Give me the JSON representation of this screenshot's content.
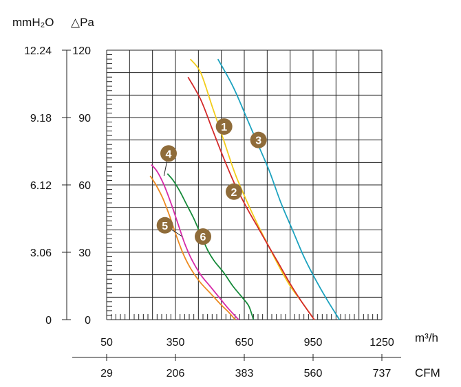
{
  "chart_data": {
    "type": "line",
    "title": "",
    "xlabel": "m³/h",
    "ylabel": "△Pa",
    "x_units": [
      "m³/h",
      "CFM"
    ],
    "y_units": [
      "mmH₂O",
      "△Pa"
    ],
    "xlim": [
      50,
      1250
    ],
    "ylim": [
      0,
      120
    ],
    "x_ticks": [
      50,
      350,
      650,
      950,
      1250
    ],
    "x_ticks_cfm": [
      "29",
      "206",
      "383",
      "560",
      "737"
    ],
    "y_ticks": [
      0,
      30,
      60,
      90,
      120
    ],
    "y_ticks_mmh2o": [
      "0",
      "3.06",
      "6.12",
      "9.18",
      "12.24"
    ],
    "grid": true,
    "series": [
      {
        "label": "1",
        "color": "#f2cc1a",
        "points": [
          [
            415,
            116
          ],
          [
            460,
            110
          ],
          [
            510,
            95
          ],
          [
            560,
            80
          ],
          [
            610,
            65
          ],
          [
            660,
            53
          ],
          [
            710,
            42
          ],
          [
            760,
            32
          ],
          [
            800,
            24
          ],
          [
            850,
            15
          ],
          [
            900,
            8
          ],
          [
            955,
            0
          ]
        ],
        "badge_at": [
          562,
          86
        ]
      },
      {
        "label": "2",
        "color": "#d42a2a",
        "points": [
          [
            405,
            108
          ],
          [
            460,
            98
          ],
          [
            510,
            85
          ],
          [
            560,
            72
          ],
          [
            610,
            60
          ],
          [
            660,
            50
          ],
          [
            710,
            41
          ],
          [
            760,
            32
          ],
          [
            800,
            25
          ],
          [
            850,
            16
          ],
          [
            900,
            8
          ],
          [
            955,
            0
          ]
        ],
        "badge_at": [
          605,
          57
        ]
      },
      {
        "label": "3",
        "color": "#1ca2bf",
        "points": [
          [
            535,
            116
          ],
          [
            600,
            104
          ],
          [
            660,
            90
          ],
          [
            710,
            78
          ],
          [
            760,
            66
          ],
          [
            810,
            52
          ],
          [
            860,
            40
          ],
          [
            910,
            28
          ],
          [
            960,
            18
          ],
          [
            1010,
            9
          ],
          [
            1065,
            0
          ]
        ],
        "badge_at": [
          712,
          80
        ]
      },
      {
        "label": "4",
        "color": "#d62aa8",
        "points": [
          [
            245,
            69
          ],
          [
            270,
            66
          ],
          [
            300,
            60
          ],
          [
            330,
            52
          ],
          [
            360,
            43
          ],
          [
            390,
            34
          ],
          [
            420,
            27
          ],
          [
            460,
            20
          ],
          [
            500,
            15
          ],
          [
            540,
            10
          ],
          [
            580,
            5
          ],
          [
            625,
            0
          ]
        ],
        "badge_at": [
          320,
          74
        ]
      },
      {
        "label": "5",
        "color": "#ed8a20",
        "points": [
          [
            240,
            64
          ],
          [
            265,
            60
          ],
          [
            295,
            54
          ],
          [
            325,
            46
          ],
          [
            355,
            37
          ],
          [
            385,
            29
          ],
          [
            415,
            23
          ],
          [
            455,
            17
          ],
          [
            500,
            12
          ],
          [
            545,
            7
          ],
          [
            585,
            3
          ],
          [
            610,
            0
          ]
        ],
        "badge_at": [
          304,
          42
        ]
      },
      {
        "label": "6",
        "color": "#168a3a",
        "points": [
          [
            315,
            65
          ],
          [
            340,
            62
          ],
          [
            370,
            57
          ],
          [
            400,
            51
          ],
          [
            430,
            45
          ],
          [
            460,
            38
          ],
          [
            490,
            31
          ],
          [
            520,
            26
          ],
          [
            560,
            21
          ],
          [
            600,
            15
          ],
          [
            640,
            10
          ],
          [
            670,
            6
          ],
          [
            690,
            0
          ]
        ],
        "badge_at": [
          470,
          37
        ]
      }
    ],
    "leaders": [
      {
        "label": "4",
        "from": [
          320,
          74
        ],
        "to": [
          300,
          64
        ]
      },
      {
        "label": "5",
        "from": [
          304,
          42
        ],
        "to": [
          380,
          37
        ]
      }
    ],
    "badge_color": "#8f6c3a"
  }
}
